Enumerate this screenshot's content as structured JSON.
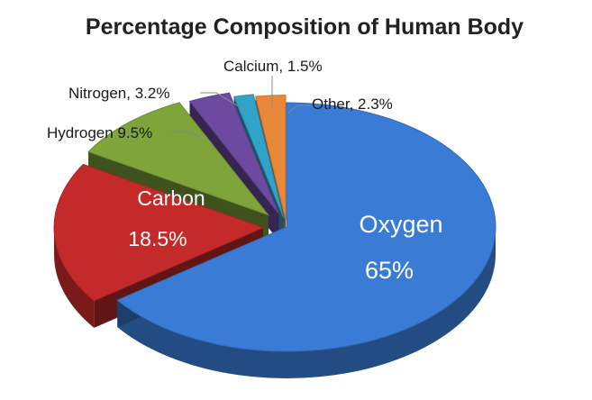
{
  "chart_data": {
    "type": "pie",
    "title": "Percentage Composition of Human Body",
    "three_d": true,
    "exploded": true,
    "slices": [
      {
        "name": "Oxygen",
        "value": 65,
        "label_name": "Oxygen",
        "label_value": "65%",
        "color": "#3a7bd5"
      },
      {
        "name": "Carbon",
        "value": 18.5,
        "label_name": "Carbon",
        "label_value": "18.5%",
        "color": "#c42a2a"
      },
      {
        "name": "Hydrogen",
        "value": 9.5,
        "label": "Hydrogen 9.5%",
        "color": "#7ea43a"
      },
      {
        "name": "Nitrogen",
        "value": 3.2,
        "label": "Nitrogen, 3.2%",
        "color": "#6b4aa0"
      },
      {
        "name": "Calcium",
        "value": 1.5,
        "label": "Calcium, 1.5%",
        "color": "#2fa3c8"
      },
      {
        "name": "Other",
        "value": 2.3,
        "label": "Other, 2.3%",
        "color": "#e8893a"
      }
    ]
  }
}
